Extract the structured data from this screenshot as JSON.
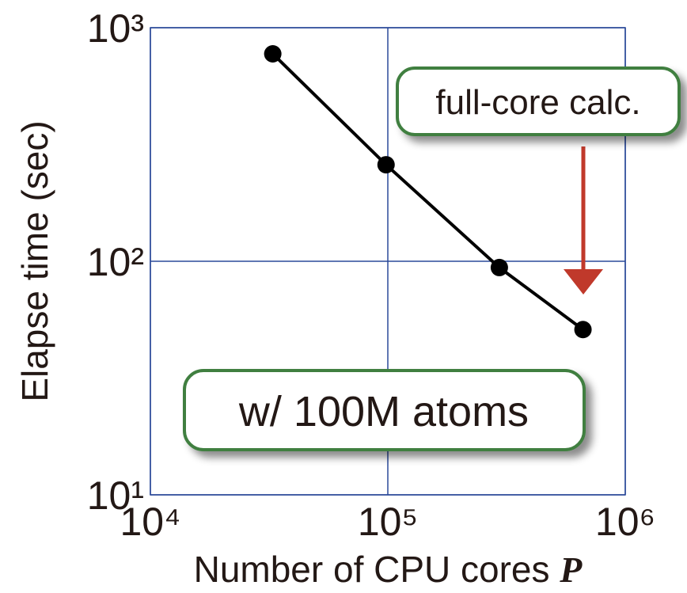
{
  "chart_data": {
    "type": "line",
    "x_label": "Number of CPU cores",
    "x_label_variable": "P",
    "y_label": "Elapse time (sec)",
    "x": [
      32768,
      98304,
      294912,
      663552
    ],
    "series": [
      {
        "name": "w/ 100M atoms",
        "color": "#000000",
        "values": [
          773,
          259,
          94,
          51
        ]
      }
    ],
    "xlim": [
      10000,
      1000000
    ],
    "ylim": [
      10,
      1000
    ],
    "xscale": "log",
    "yscale": "log",
    "xticks": [
      {
        "value": 10000,
        "label": "10⁴"
      },
      {
        "value": 100000,
        "label": "10⁵"
      },
      {
        "value": 1000000,
        "label": "10⁶"
      }
    ],
    "yticks": [
      {
        "value": 10,
        "label": "10¹"
      },
      {
        "value": 100,
        "label": "10²"
      },
      {
        "value": 1000,
        "label": "10³"
      }
    ],
    "grid": true,
    "annotations": [
      "full-core calc."
    ]
  }
}
